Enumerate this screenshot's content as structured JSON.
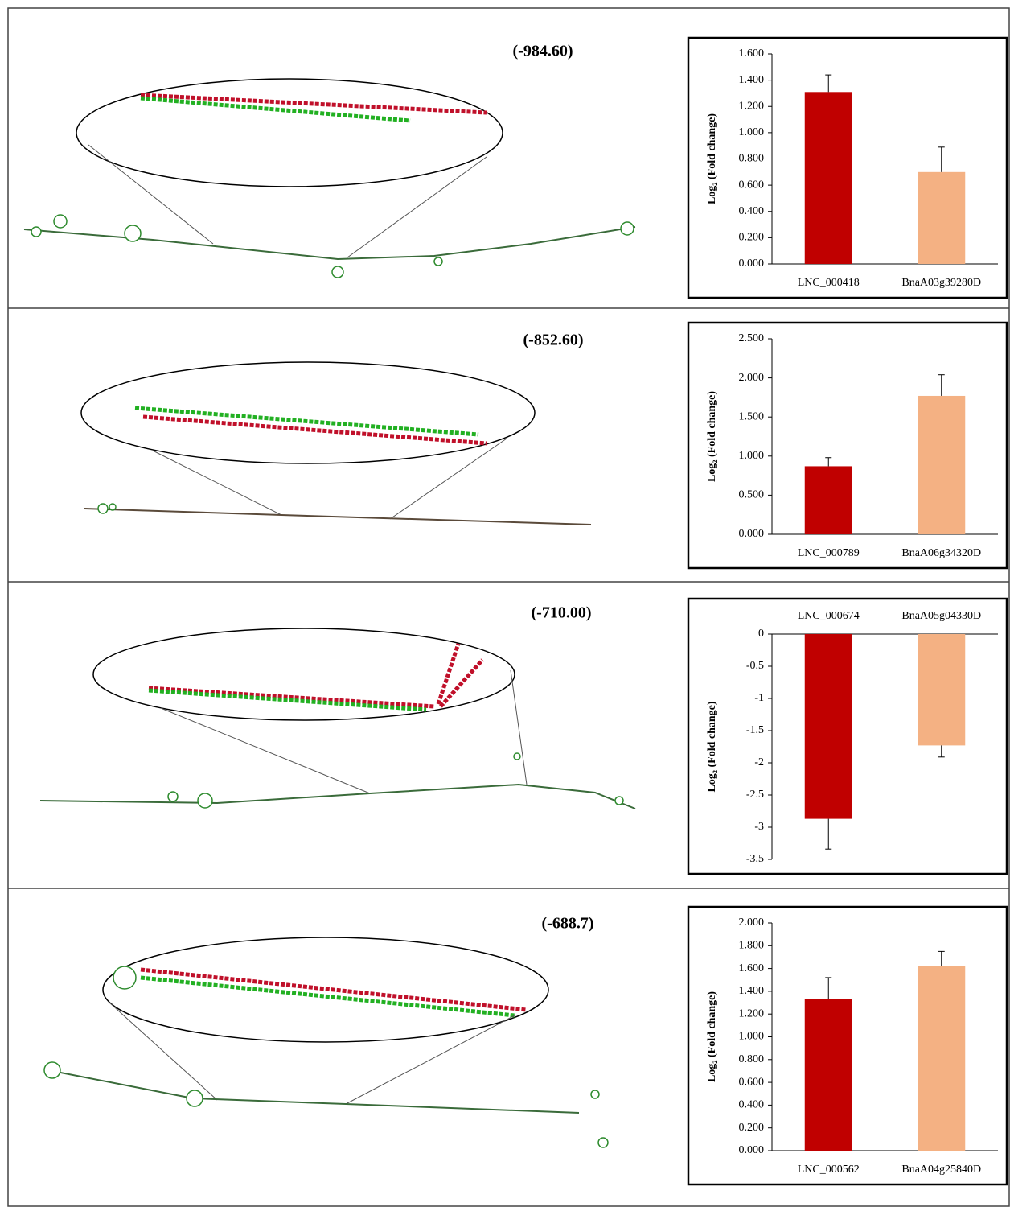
{
  "energies": [
    "(-984.60)",
    "(-852.60)",
    "(-710.00)",
    "(-688.7)"
  ],
  "chart_data": [
    {
      "type": "bar",
      "y_label": "Log₂ (Fold change)",
      "categories": [
        "LNC_000418",
        "BnaA03g39280D"
      ],
      "series": [
        {
          "colors": [
            "#c00000",
            "#f4b183"
          ],
          "values": [
            1.31,
            0.7
          ],
          "errors": [
            0.13,
            0.19
          ]
        }
      ],
      "ylim": [
        0,
        1.6
      ],
      "yticks": [
        {
          "value": 0,
          "label": "0.000"
        },
        {
          "value": 0.2,
          "label": "0.200"
        },
        {
          "value": 0.4,
          "label": "0.400"
        },
        {
          "value": 0.6,
          "label": "0.600"
        },
        {
          "value": 0.8,
          "label": "0.800"
        },
        {
          "value": 1.0,
          "label": "1.000"
        },
        {
          "value": 1.2,
          "label": "1.200"
        },
        {
          "value": 1.4,
          "label": "1.400"
        },
        {
          "value": 1.6,
          "label": "1.600"
        }
      ]
    },
    {
      "type": "bar",
      "y_label": "Log₂ (Fold change)",
      "categories": [
        "LNC_000789",
        "BnaA06g34320D"
      ],
      "series": [
        {
          "colors": [
            "#c00000",
            "#f4b183"
          ],
          "values": [
            0.87,
            1.77
          ],
          "errors": [
            0.11,
            0.27
          ]
        }
      ],
      "ylim": [
        0,
        2.5
      ],
      "yticks": [
        {
          "value": 0,
          "label": "0.000"
        },
        {
          "value": 0.5,
          "label": "0.500"
        },
        {
          "value": 1.0,
          "label": "1.000"
        },
        {
          "value": 1.5,
          "label": "1.500"
        },
        {
          "value": 2.0,
          "label": "2.000"
        },
        {
          "value": 2.5,
          "label": "2.500"
        }
      ]
    },
    {
      "type": "bar",
      "y_label": "Log₂ (Fold change)",
      "categories": [
        "LNC_000674",
        "BnaA05g04330D"
      ],
      "series": [
        {
          "colors": [
            "#c00000",
            "#f4b183"
          ],
          "values": [
            -2.87,
            -1.73
          ],
          "errors": [
            0.47,
            0.18
          ]
        }
      ],
      "ylim": [
        -3.5,
        0
      ],
      "yticks": [
        0,
        -0.5,
        -1,
        -1.5,
        -2,
        -2.5,
        -3,
        -3.5
      ]
    },
    {
      "type": "bar",
      "y_label": "Log₂ (Fold change)",
      "categories": [
        "LNC_000562",
        "BnaA04g25840D"
      ],
      "series": [
        {
          "colors": [
            "#c00000",
            "#f4b183"
          ],
          "values": [
            1.33,
            1.62
          ],
          "errors": [
            0.19,
            0.13
          ]
        }
      ],
      "ylim": [
        0,
        2.0
      ],
      "yticks": [
        {
          "value": 0,
          "label": "0.000"
        },
        {
          "value": 0.2,
          "label": "0.200"
        },
        {
          "value": 0.4,
          "label": "0.400"
        },
        {
          "value": 0.6,
          "label": "0.600"
        },
        {
          "value": 0.8,
          "label": "0.800"
        },
        {
          "value": 1.0,
          "label": "1.000"
        },
        {
          "value": 1.2,
          "label": "1.200"
        },
        {
          "value": 1.4,
          "label": "1.400"
        },
        {
          "value": 1.6,
          "label": "1.600"
        },
        {
          "value": 1.8,
          "label": "1.800"
        },
        {
          "value": 2.0,
          "label": "2.000"
        }
      ]
    }
  ]
}
